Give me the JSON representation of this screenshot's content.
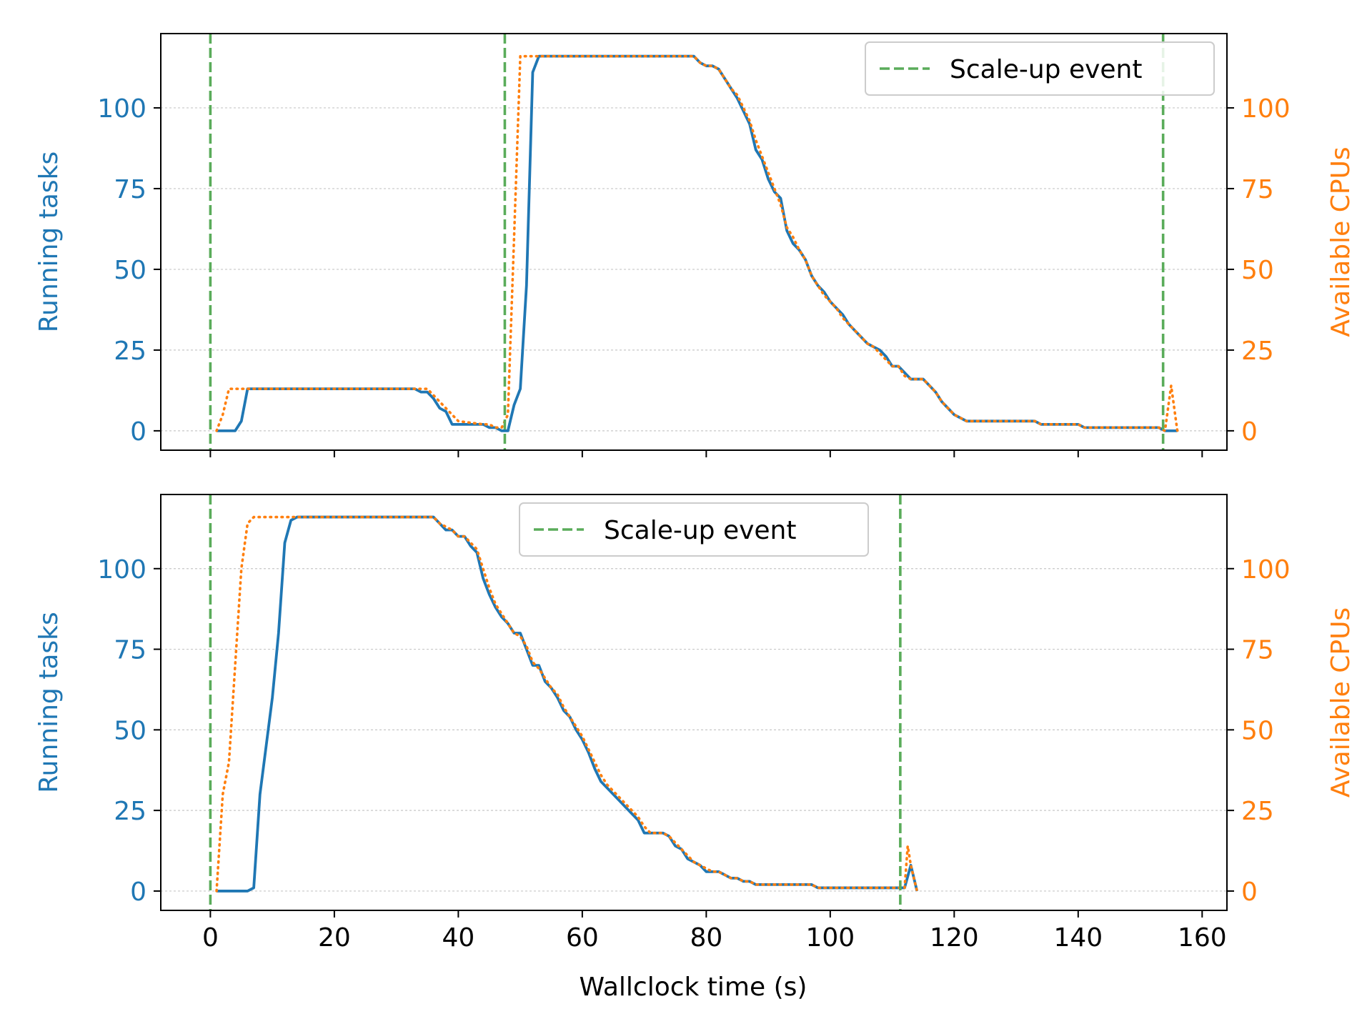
{
  "colors": {
    "running": "#1f77b4",
    "cpus": "#ff7f0e",
    "event": "#5aac5a",
    "grid": "#b0b0b0",
    "axis": "#000000"
  },
  "shared_xlabel": "Wallclock time (s)",
  "chart_data": [
    {
      "type": "line",
      "ylabel_left": "Running tasks",
      "ylabel_right": "Available CPUs",
      "xlim": [
        -8,
        164
      ],
      "ylim": [
        -6,
        123
      ],
      "xticks": [
        0,
        20,
        40,
        60,
        80,
        100,
        120,
        140,
        160
      ],
      "show_xtick_labels": false,
      "yticks": [
        0,
        25,
        50,
        75,
        100
      ],
      "grid": "y",
      "legend": {
        "label": "Scale-up event",
        "placement": "top-right"
      },
      "event_lines": [
        0,
        47.5,
        153.7
      ],
      "series": [
        {
          "axis": "left",
          "style": "solid",
          "x": [
            1,
            2,
            4,
            5,
            6,
            10,
            20,
            30,
            33,
            34,
            35,
            36,
            37,
            38,
            39,
            40,
            42,
            44,
            45,
            46,
            47,
            48,
            49,
            50,
            51,
            52,
            53,
            55,
            60,
            70,
            78,
            79,
            80,
            81,
            82,
            83,
            84,
            85,
            86,
            87,
            88,
            89,
            90,
            91,
            92,
            93,
            94,
            95,
            96,
            97,
            98,
            99,
            100,
            101,
            102,
            103,
            104,
            105,
            106,
            107,
            108,
            109,
            110,
            111,
            112,
            113,
            114,
            115,
            116,
            117,
            118,
            119,
            120,
            121,
            122,
            123,
            124,
            125,
            128,
            133,
            134,
            140,
            141,
            150,
            153,
            154,
            156
          ],
          "y": [
            0,
            0,
            0,
            3,
            13,
            13,
            13,
            13,
            13,
            12,
            12,
            10,
            7,
            6,
            2,
            2,
            2,
            2,
            1,
            1,
            0,
            0,
            8,
            13,
            45,
            111,
            116,
            116,
            116,
            116,
            116,
            114,
            113,
            113,
            112,
            109,
            106,
            103,
            99,
            95,
            87,
            84,
            78,
            74,
            72,
            62,
            58,
            56,
            53,
            48,
            45,
            43,
            40,
            38,
            36,
            33,
            31,
            29,
            27,
            26,
            25,
            23,
            20,
            20,
            18,
            16,
            16,
            16,
            14,
            12,
            9,
            7,
            5,
            4,
            3,
            3,
            3,
            3,
            3,
            3,
            2,
            2,
            1,
            1,
            1,
            0,
            0
          ]
        },
        {
          "axis": "right",
          "style": "dotted",
          "x": [
            1,
            2,
            3,
            4,
            5,
            20,
            35,
            36,
            37,
            38,
            39,
            40,
            44,
            45,
            46,
            47,
            48,
            49,
            50,
            50.5,
            51,
            52,
            60,
            70,
            78,
            79,
            80,
            81,
            82,
            83,
            84,
            85,
            86,
            87,
            88,
            89,
            90,
            91,
            92,
            93,
            94,
            95,
            96,
            97,
            98,
            99,
            100,
            101,
            102,
            103,
            104,
            105,
            106,
            107,
            108,
            109,
            110,
            111,
            112,
            113,
            114,
            115,
            116,
            117,
            118,
            119,
            120,
            121,
            122,
            123,
            124,
            125,
            128,
            133,
            134,
            140,
            141,
            150,
            153,
            154,
            155,
            156
          ],
          "y": [
            0,
            5,
            13,
            13,
            13,
            13,
            13,
            11,
            9,
            7,
            5,
            3,
            2,
            2,
            1,
            1,
            5,
            60,
            116,
            116,
            116,
            116,
            116,
            116,
            116,
            114,
            113,
            113,
            112,
            109,
            106,
            104,
            100,
            96,
            90,
            85,
            80,
            75,
            70,
            63,
            60,
            56,
            53,
            48,
            45,
            42,
            40,
            38,
            35,
            33,
            31,
            29,
            27,
            26,
            24,
            22,
            20,
            20,
            17,
            16,
            16,
            16,
            14,
            12,
            9,
            7,
            5,
            4,
            3,
            3,
            3,
            3,
            3,
            3,
            2,
            2,
            1,
            1,
            1,
            0,
            14,
            0
          ]
        }
      ]
    },
    {
      "type": "line",
      "ylabel_left": "Running tasks",
      "ylabel_right": "Available CPUs",
      "xlabel": "Wallclock time (s)",
      "xlim": [
        -8,
        164
      ],
      "ylim": [
        -6,
        123
      ],
      "xticks": [
        0,
        20,
        40,
        60,
        80,
        100,
        120,
        140,
        160
      ],
      "show_xtick_labels": true,
      "yticks": [
        0,
        25,
        50,
        75,
        100
      ],
      "grid": "y",
      "legend": {
        "label": "Scale-up event",
        "placement": "top-center"
      },
      "event_lines": [
        0,
        111.3
      ],
      "series": [
        {
          "axis": "left",
          "style": "solid",
          "x": [
            1,
            3,
            5,
            6,
            7,
            8,
            9,
            10,
            11,
            12,
            13,
            14,
            20,
            30,
            36,
            37,
            38,
            39,
            40,
            41,
            42,
            43,
            44,
            45,
            46,
            47,
            48,
            49,
            50,
            51,
            52,
            53,
            54,
            55,
            56,
            57,
            58,
            59,
            60,
            61,
            62,
            63,
            64,
            65,
            66,
            67,
            68,
            69,
            70,
            71,
            72,
            73,
            74,
            75,
            76,
            77,
            78,
            79,
            80,
            81,
            82,
            83,
            84,
            85,
            86,
            87,
            88,
            89,
            90,
            92,
            95,
            97,
            98,
            100,
            105,
            110,
            111,
            112,
            113,
            114
          ],
          "y": [
            0,
            0,
            0,
            0,
            1,
            30,
            45,
            60,
            80,
            108,
            115,
            116,
            116,
            116,
            116,
            114,
            112,
            112,
            110,
            110,
            107,
            105,
            97,
            92,
            88,
            85,
            83,
            80,
            80,
            75,
            70,
            70,
            65,
            63,
            60,
            56,
            54,
            50,
            47,
            43,
            38,
            34,
            32,
            30,
            28,
            26,
            24,
            22,
            18,
            18,
            18,
            18,
            17,
            14,
            13,
            10,
            9,
            8,
            6,
            6,
            6,
            5,
            4,
            4,
            3,
            3,
            2,
            2,
            2,
            2,
            2,
            2,
            1,
            1,
            1,
            1,
            1,
            1,
            8,
            0
          ]
        },
        {
          "axis": "right",
          "style": "dotted",
          "x": [
            1,
            2,
            3,
            4,
            5,
            6,
            7,
            10,
            20,
            30,
            36,
            37,
            38,
            39,
            40,
            41,
            42,
            43,
            44,
            45,
            46,
            47,
            48,
            49,
            50,
            51,
            52,
            53,
            54,
            55,
            56,
            57,
            58,
            59,
            60,
            61,
            62,
            63,
            64,
            65,
            66,
            67,
            68,
            69,
            70,
            71,
            72,
            73,
            74,
            75,
            76,
            77,
            78,
            79,
            80,
            81,
            82,
            83,
            84,
            85,
            86,
            87,
            88,
            89,
            90,
            92,
            95,
            97,
            98,
            100,
            105,
            110,
            111,
            112,
            112.5,
            113,
            114
          ],
          "y": [
            0,
            30,
            40,
            70,
            100,
            114,
            116,
            116,
            116,
            116,
            116,
            114,
            113,
            112,
            110,
            110,
            108,
            106,
            100,
            94,
            89,
            86,
            83,
            80,
            79,
            76,
            71,
            69,
            66,
            63,
            61,
            57,
            54,
            51,
            48,
            44,
            40,
            36,
            33,
            31,
            29,
            27,
            25,
            23,
            20,
            18,
            18,
            18,
            17,
            15,
            13,
            11,
            9,
            8,
            7,
            6,
            6,
            5,
            4,
            4,
            3,
            3,
            2,
            2,
            2,
            2,
            2,
            2,
            1,
            1,
            1,
            1,
            1,
            1,
            14,
            8,
            0
          ]
        }
      ]
    }
  ]
}
